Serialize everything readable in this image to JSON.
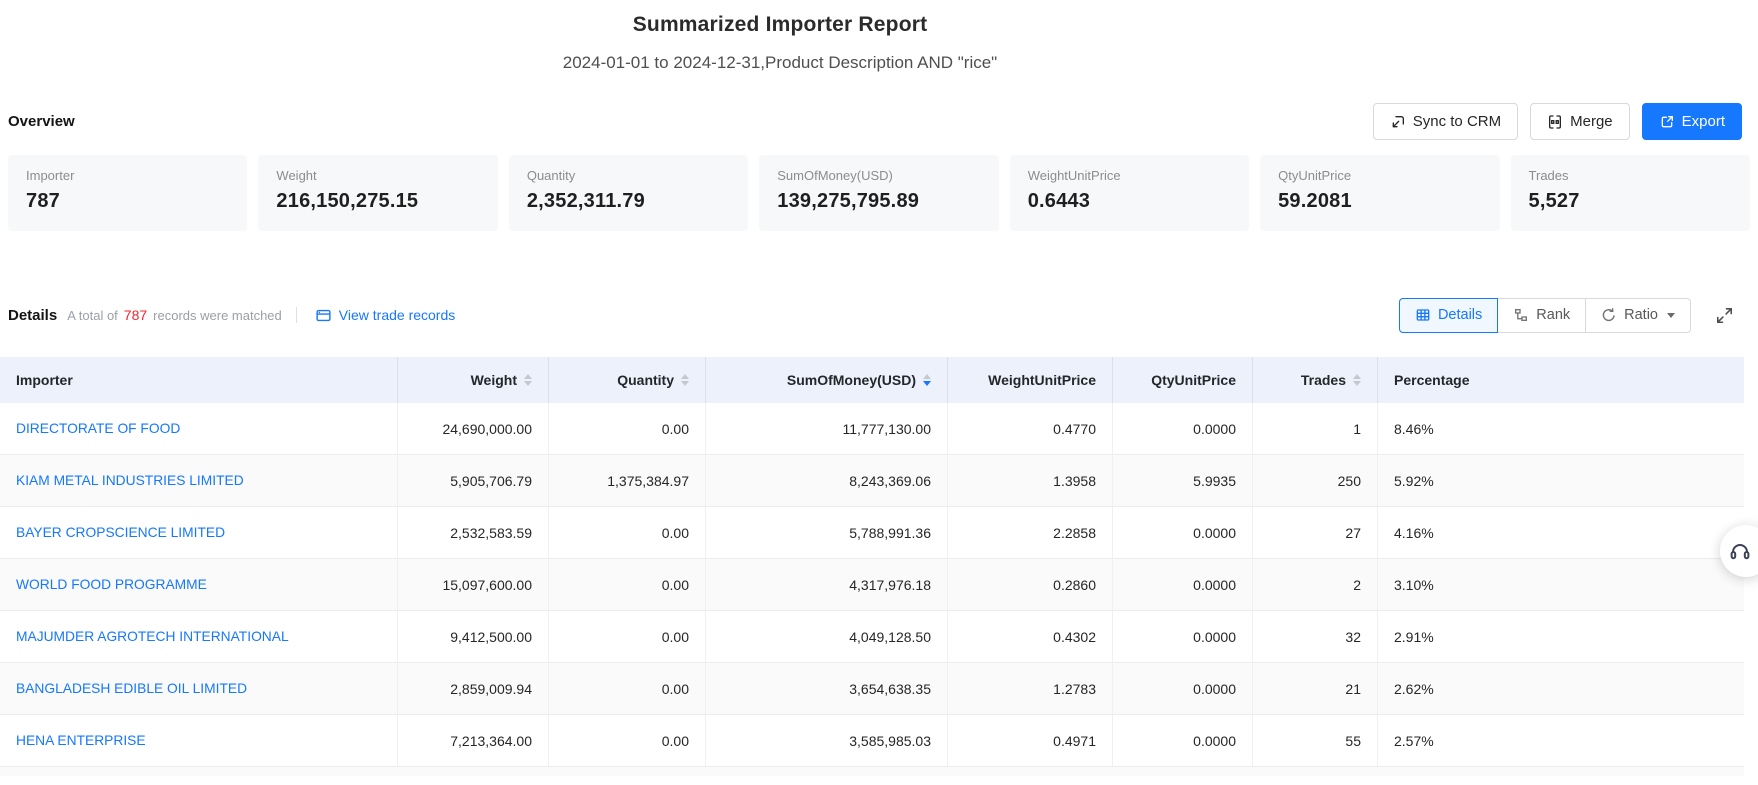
{
  "page": {
    "title": "Summarized Importer Report",
    "subtitle": "2024-01-01 to 2024-12-31,Product Description AND \"rice\""
  },
  "overview": {
    "heading": "Overview",
    "actions": {
      "sync": "Sync to CRM",
      "merge": "Merge",
      "export": "Export"
    },
    "cards": [
      {
        "label": "Importer",
        "value": "787"
      },
      {
        "label": "Weight",
        "value": "216,150,275.15"
      },
      {
        "label": "Quantity",
        "value": "2,352,311.79"
      },
      {
        "label": "SumOfMoney(USD)",
        "value": "139,275,795.89"
      },
      {
        "label": "WeightUnitPrice",
        "value": "0.6443"
      },
      {
        "label": "QtyUnitPrice",
        "value": "59.2081"
      },
      {
        "label": "Trades",
        "value": "5,527"
      }
    ]
  },
  "details": {
    "heading": "Details",
    "total_prefix": "A total of",
    "total_count": "787",
    "total_suffix": "records were matched",
    "view_trade_records": "View trade records",
    "tabs": {
      "details": "Details",
      "rank": "Rank",
      "ratio": "Ratio"
    }
  },
  "table": {
    "columns": [
      {
        "label": "Importer",
        "sortable": false,
        "sort": null,
        "align": "left"
      },
      {
        "label": "Weight",
        "sortable": true,
        "sort": null,
        "align": "right"
      },
      {
        "label": "Quantity",
        "sortable": true,
        "sort": null,
        "align": "right"
      },
      {
        "label": "SumOfMoney(USD)",
        "sortable": true,
        "sort": "desc",
        "align": "right"
      },
      {
        "label": "WeightUnitPrice",
        "sortable": false,
        "sort": null,
        "align": "right"
      },
      {
        "label": "QtyUnitPrice",
        "sortable": false,
        "sort": null,
        "align": "right"
      },
      {
        "label": "Trades",
        "sortable": true,
        "sort": null,
        "align": "right"
      },
      {
        "label": "Percentage",
        "sortable": false,
        "sort": null,
        "align": "left"
      }
    ],
    "rows": [
      {
        "importer": "DIRECTORATE OF FOOD",
        "weight": "24,690,000.00",
        "quantity": "0.00",
        "sum_of_money": "11,777,130.00",
        "weight_unit_price": "0.4770",
        "qty_unit_price": "0.0000",
        "trades": "1",
        "percentage": "8.46%"
      },
      {
        "importer": "KIAM METAL INDUSTRIES LIMITED",
        "weight": "5,905,706.79",
        "quantity": "1,375,384.97",
        "sum_of_money": "8,243,369.06",
        "weight_unit_price": "1.3958",
        "qty_unit_price": "5.9935",
        "trades": "250",
        "percentage": "5.92%"
      },
      {
        "importer": "BAYER CROPSCIENCE LIMITED",
        "weight": "2,532,583.59",
        "quantity": "0.00",
        "sum_of_money": "5,788,991.36",
        "weight_unit_price": "2.2858",
        "qty_unit_price": "0.0000",
        "trades": "27",
        "percentage": "4.16%"
      },
      {
        "importer": "WORLD FOOD PROGRAMME",
        "weight": "15,097,600.00",
        "quantity": "0.00",
        "sum_of_money": "4,317,976.18",
        "weight_unit_price": "0.2860",
        "qty_unit_price": "0.0000",
        "trades": "2",
        "percentage": "3.10%"
      },
      {
        "importer": "MAJUMDER AGROTECH INTERNATIONAL",
        "weight": "9,412,500.00",
        "quantity": "0.00",
        "sum_of_money": "4,049,128.50",
        "weight_unit_price": "0.4302",
        "qty_unit_price": "0.0000",
        "trades": "32",
        "percentage": "2.91%"
      },
      {
        "importer": "BANGLADESH EDIBLE OIL LIMITED",
        "weight": "2,859,009.94",
        "quantity": "0.00",
        "sum_of_money": "3,654,638.35",
        "weight_unit_price": "1.2783",
        "qty_unit_price": "0.0000",
        "trades": "21",
        "percentage": "2.62%"
      },
      {
        "importer": "HENA ENTERPRISE",
        "weight": "7,213,364.00",
        "quantity": "0.00",
        "sum_of_money": "3,585,985.03",
        "weight_unit_price": "0.4971",
        "qty_unit_price": "0.0000",
        "trades": "55",
        "percentage": "2.57%"
      }
    ]
  },
  "icons": {
    "sync": "import-arrow",
    "merge": "merge-columns",
    "export": "external-arrow",
    "view_records": "browser-window",
    "details_tab": "table-grid",
    "rank": "org-branch",
    "ratio": "circular-arrow",
    "fullscreen": "expand-arrows",
    "support": "headset",
    "sort": "caret-up-down"
  },
  "colors": {
    "accent": "#1677ff",
    "count_red": "#f5222d",
    "table_header_bg": "#ecf1fb",
    "stripe": "#fafafa"
  }
}
